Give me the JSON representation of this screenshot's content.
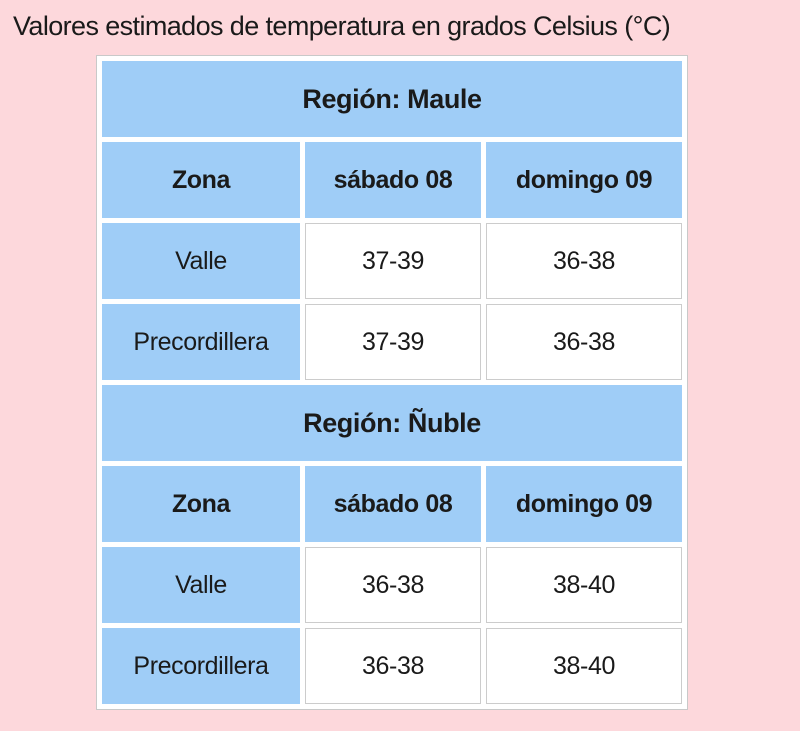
{
  "page": {
    "title": "Valores estimados de temperatura en grados Celsius (°C)",
    "background_color": "#fdd8dc",
    "header_cell_color": "#9fcdf7",
    "value_cell_color": "#ffffff",
    "cell_border_color": "#cccccc",
    "text_color": "#1a1a1a"
  },
  "chart_data": [
    {
      "type": "table",
      "title": "Región: Maule",
      "columns": [
        "Zona",
        "sábado 08",
        "domingo 09"
      ],
      "rows": [
        [
          "Valle",
          "37-39",
          "36-38"
        ],
        [
          "Precordillera",
          "37-39",
          "36-38"
        ]
      ]
    },
    {
      "type": "table",
      "title": "Región: Ñuble",
      "columns": [
        "Zona",
        "sábado 08",
        "domingo 09"
      ],
      "rows": [
        [
          "Valle",
          "36-38",
          "38-40"
        ],
        [
          "Precordillera",
          "36-38",
          "38-40"
        ]
      ]
    }
  ]
}
